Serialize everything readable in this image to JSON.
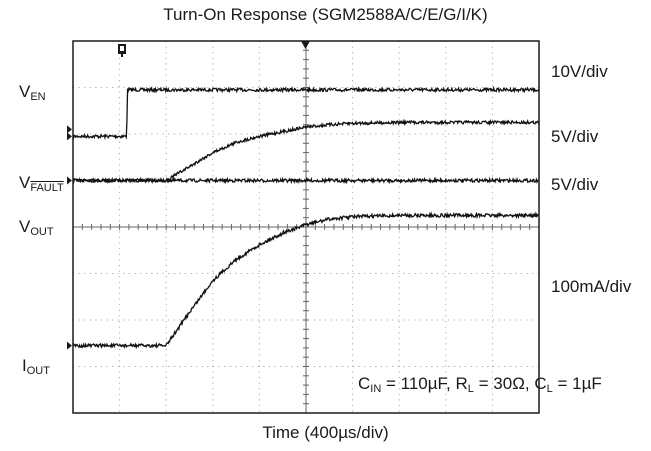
{
  "chart_data": {
    "type": "line",
    "title": "Turn-On Response (SGM2588A/C/E/G/I/K)",
    "xlabel": "Time (400µs/div)",
    "x_divisions": 10,
    "y_divisions": 8,
    "grid": true,
    "x_unit_per_div": "400µs",
    "conditions": {
      "cin_sym": "C",
      "cin_sub": "IN",
      "cin_val": " = 110µF, ",
      "rl_sym": "R",
      "rl_sub": "L",
      "rl_val": " = 30Ω, ",
      "cl_sym": "C",
      "cl_sub": "L",
      "cl_val": " = 1µF"
    },
    "series": [
      {
        "label_main": "V",
        "label_sub": "EN",
        "scale": "10V/div",
        "t": [
          0,
          1.15,
          1.17,
          10
        ],
        "div": [
          5.95,
          5.95,
          6.95,
          6.95
        ]
      },
      {
        "label_main": "V",
        "label_sub": "FAULT",
        "scale": "5V/div",
        "t": [
          0,
          10
        ],
        "div": [
          5.0,
          5.0
        ]
      },
      {
        "label_main": "V",
        "label_sub": "OUT",
        "scale": "5V/div",
        "t": [
          0,
          2.0,
          2.5,
          3.0,
          3.5,
          4.0,
          4.5,
          5.0,
          5.5,
          6.0,
          7.0,
          10
        ],
        "div": [
          0,
          0,
          0.3,
          0.6,
          0.82,
          0.95,
          1.05,
          1.15,
          1.2,
          1.23,
          1.25,
          1.25
        ]
      },
      {
        "label_main": "I",
        "label_sub": "OUT",
        "scale": "100mA/div",
        "t": [
          0,
          2.0,
          2.5,
          3.0,
          3.5,
          4.0,
          4.5,
          5.0,
          5.5,
          6.0,
          7.0,
          10
        ],
        "div": [
          0,
          0,
          0.72,
          1.4,
          1.85,
          2.17,
          2.42,
          2.6,
          2.72,
          2.77,
          2.8,
          2.8
        ]
      }
    ]
  },
  "styles": {
    "frame_color": "#1a1a1a",
    "grid_color": "#9a9a9a",
    "trace_color": "#111111"
  }
}
